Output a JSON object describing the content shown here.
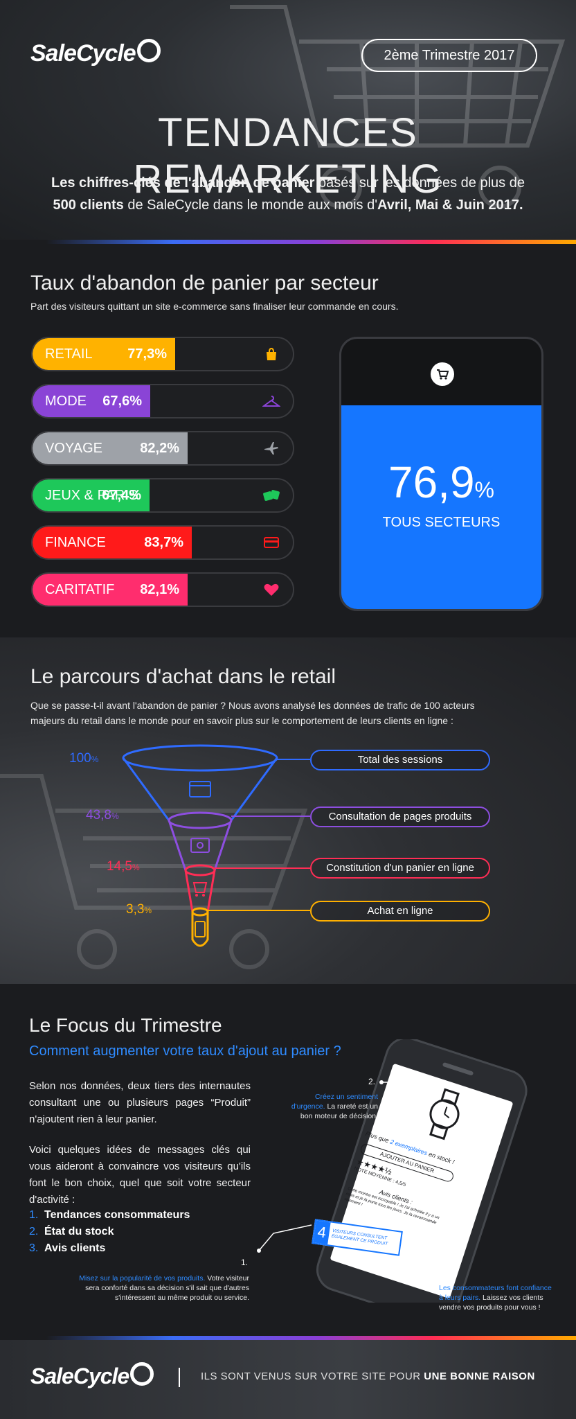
{
  "brand": {
    "name": "SaleCycle"
  },
  "header": {
    "quarter": "2ème Trimestre 2017",
    "title": "TENDANCES REMARKETING",
    "subtitle_l1_bold": "Les chiffres-clés de l'abandon de panier",
    "subtitle_l1_rest": " basés sur les données de plus de",
    "subtitle_l2_bold1": "500 clients",
    "subtitle_l2_mid": " de SaleCycle dans le monde aux mois d'",
    "subtitle_l2_bold2": "Avril, Mai & Juin 2017."
  },
  "abandon": {
    "title": "Taux d'abandon de panier par secteur",
    "desc": "Part des visiteurs quittant un site e-commerce sans finaliser leur commande en cours.",
    "sectors": [
      {
        "label": "RETAIL",
        "value": "77,3%",
        "pct": 77.3,
        "color": "#ffb200",
        "icon": "shopping-bag-icon"
      },
      {
        "label": "MODE",
        "value": "67,6%",
        "pct": 67.6,
        "color": "#8a44d6",
        "icon": "hanger-icon"
      },
      {
        "label": "VOYAGE",
        "value": "82,2%",
        "pct": 82.2,
        "color": "#9ea2a8",
        "icon": "plane-icon"
      },
      {
        "label": "JEUX & PARIS",
        "value": "67,4%",
        "pct": 67.4,
        "color": "#1ec85a",
        "icon": "dice-icon"
      },
      {
        "label": "FINANCE",
        "value": "83,7%",
        "pct": 83.7,
        "color": "#ff1a1a",
        "icon": "credit-card-icon"
      },
      {
        "label": "CARITATIF",
        "value": "82,1%",
        "pct": 82.1,
        "color": "#ff2d6e",
        "icon": "heart-icon"
      }
    ],
    "overall_value": "76,9",
    "overall_unit": "%",
    "overall_label": "TOUS SECTEURS"
  },
  "journey": {
    "title": "Le parcours d'achat dans le retail",
    "desc_l1": "Que se passe-t-il avant l'abandon de panier ? Nous avons analysé les données de trafic de 100 acteurs",
    "desc_l2": "majeurs du retail dans le monde pour en savoir plus sur le comportement de leurs clients en ligne :",
    "steps": [
      {
        "pct": "100",
        "label": "Total des sessions",
        "color": "#2f6bff"
      },
      {
        "pct": "43,8",
        "label": "Consultation de pages produits",
        "color": "#8d4ee0"
      },
      {
        "pct": "14,5",
        "label": "Constitution d'un panier en ligne",
        "color": "#ff2d55"
      },
      {
        "pct": "3,3",
        "label": "Achat en ligne",
        "color": "#ffb000"
      }
    ],
    "pct_unit": "%"
  },
  "focus": {
    "title": "Le Focus du Trimestre",
    "subtitle": "Comment augmenter votre taux d'ajout au panier ?",
    "p1": "Selon nos données, deux tiers des internautes consultant une ou plusieurs pages “Produit” n'ajoutent rien à leur panier.",
    "p2": "Voici quelques idées de messages clés qui vous aideront à convaincre vos visiteurs qu'ils font le bon choix, quel que soit votre secteur d'activité :",
    "list": [
      {
        "n": "1.",
        "text": "Tendances consommateurs"
      },
      {
        "n": "2.",
        "text": "État du stock"
      },
      {
        "n": "3.",
        "text": "Avis clients"
      }
    ],
    "callout1_num": "1.",
    "callout1_hl": "Misez sur la popularité de vos produits.",
    "callout1_rest": " Votre visiteur sera conforté dans sa décision s'il sait que d'autres s'intéressent au même produit ou service.",
    "callout2_num": "2.",
    "callout2_hl": "Créez un sentiment d'urgence.",
    "callout2_rest": " La rareté est un bon moteur de décision.",
    "callout3_num": "3.",
    "callout3_hl": "Les consommateurs font confiance à leurs pairs.",
    "callout3_rest": " Laissez vos clients vendre vos produits pour vous !",
    "phone": {
      "stock_pre": "Plus que ",
      "stock_hl": "2 exemplaires",
      "stock_post": " en stock !",
      "button": "AJOUTER AU PANIER",
      "stars": "★★★★½",
      "rating": "NOTE MOYENNE : 4,5/5",
      "reviews_title": "Avis clients :",
      "reviews_text": "Cette montre est incroyable ! Je l'ai achetée il y a un mois et je la porte tous les jours. Je la recommande vivement !",
      "badge_num": "4",
      "badge_text": "VISITEURS CONSULTENT ÉGALEMENT CE PRODUIT"
    }
  },
  "footer": {
    "tag_pre": "ILS SONT VENUS SUR VOTRE SITE POUR ",
    "tag_bold": "UNE BONNE RAISON"
  },
  "colors": {
    "accent_blue": "#1576ff",
    "background": "#1b1c1f"
  }
}
